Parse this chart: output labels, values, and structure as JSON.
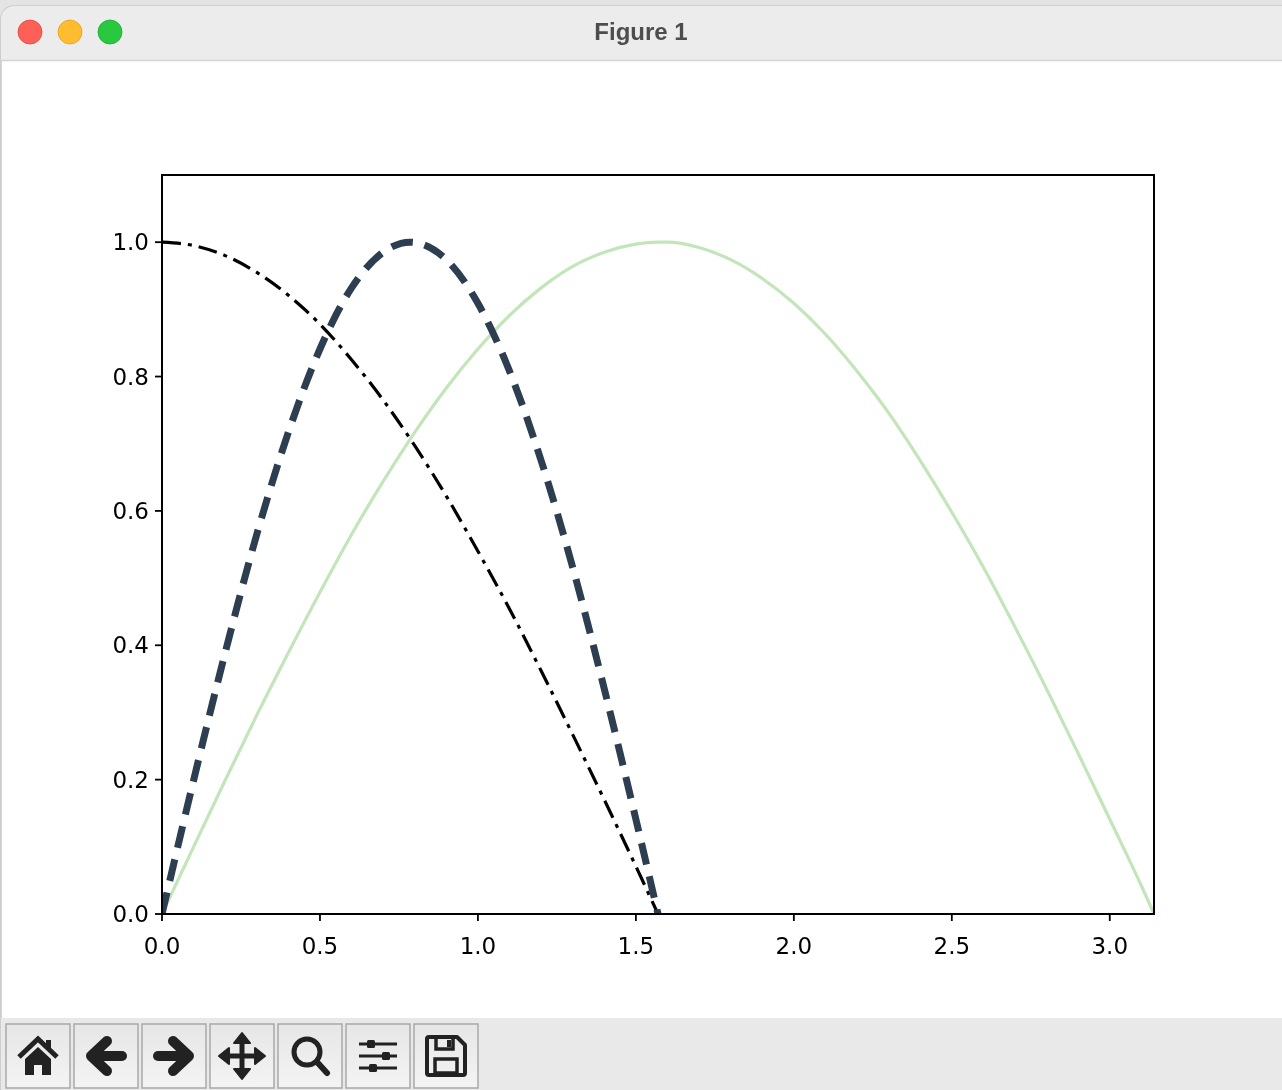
{
  "chart_data": {
    "type": "line",
    "annotations": [
      "Figure 1"
    ],
    "xlim": [
      0,
      3.14
    ],
    "ylim": [
      0,
      1.1
    ],
    "xticks": [
      {
        "value": 0,
        "label": "0.0"
      },
      0.5,
      {
        "value": 1,
        "label": "1.0"
      },
      1.5,
      {
        "value": 2,
        "label": "2.0"
      },
      2.5,
      {
        "value": 3,
        "label": "3.0"
      }
    ],
    "yticks": [
      {
        "value": 0,
        "label": "0.0"
      },
      0.2,
      0.4,
      0.6,
      0.8,
      {
        "value": 1,
        "label": "1.0"
      }
    ],
    "series": [
      {
        "color": "#c2e5b9",
        "line_style": "solid",
        "x": [
          0,
          0.1,
          0.2,
          0.3,
          0.4,
          0.5,
          0.6,
          0.7,
          0.8,
          0.9,
          1.0,
          1.1,
          1.2,
          1.3,
          1.4,
          1.5,
          1.57,
          1.6,
          1.7,
          1.8,
          1.9,
          2.0,
          2.1,
          2.2,
          2.3,
          2.4,
          2.5,
          2.6,
          2.7,
          2.8,
          2.9,
          3.0,
          3.1,
          3.14
        ],
        "values": [
          0,
          0.1,
          0.199,
          0.296,
          0.389,
          0.479,
          0.565,
          0.644,
          0.717,
          0.783,
          0.841,
          0.891,
          0.932,
          0.964,
          0.985,
          0.997,
          1.0,
          1.0,
          0.992,
          0.974,
          0.946,
          0.909,
          0.863,
          0.808,
          0.746,
          0.675,
          0.598,
          0.516,
          0.427,
          0.335,
          0.239,
          0.141,
          0.042,
          0
        ]
      },
      {
        "color": "#000000",
        "line_style": "dashdot",
        "x": [
          0,
          0.1,
          0.2,
          0.3,
          0.4,
          0.5,
          0.6,
          0.7,
          0.8,
          0.9,
          1.0,
          1.1,
          1.2,
          1.3,
          1.4,
          1.5,
          1.57
        ],
        "values": [
          1.0,
          0.995,
          0.98,
          0.955,
          0.921,
          0.878,
          0.825,
          0.765,
          0.697,
          0.622,
          0.54,
          0.454,
          0.362,
          0.267,
          0.17,
          0.071,
          0
        ]
      },
      {
        "color": "#2c3e50",
        "line_style": "dashed",
        "x": [
          0,
          0.1,
          0.2,
          0.3,
          0.4,
          0.5,
          0.6,
          0.7,
          0.785,
          0.9,
          1.0,
          1.1,
          1.2,
          1.3,
          1.4,
          1.5,
          1.57
        ],
        "values": [
          0,
          0.199,
          0.389,
          0.565,
          0.717,
          0.841,
          0.932,
          0.985,
          1.0,
          0.974,
          0.909,
          0.808,
          0.675,
          0.516,
          0.335,
          0.141,
          0
        ]
      }
    ]
  }
}
